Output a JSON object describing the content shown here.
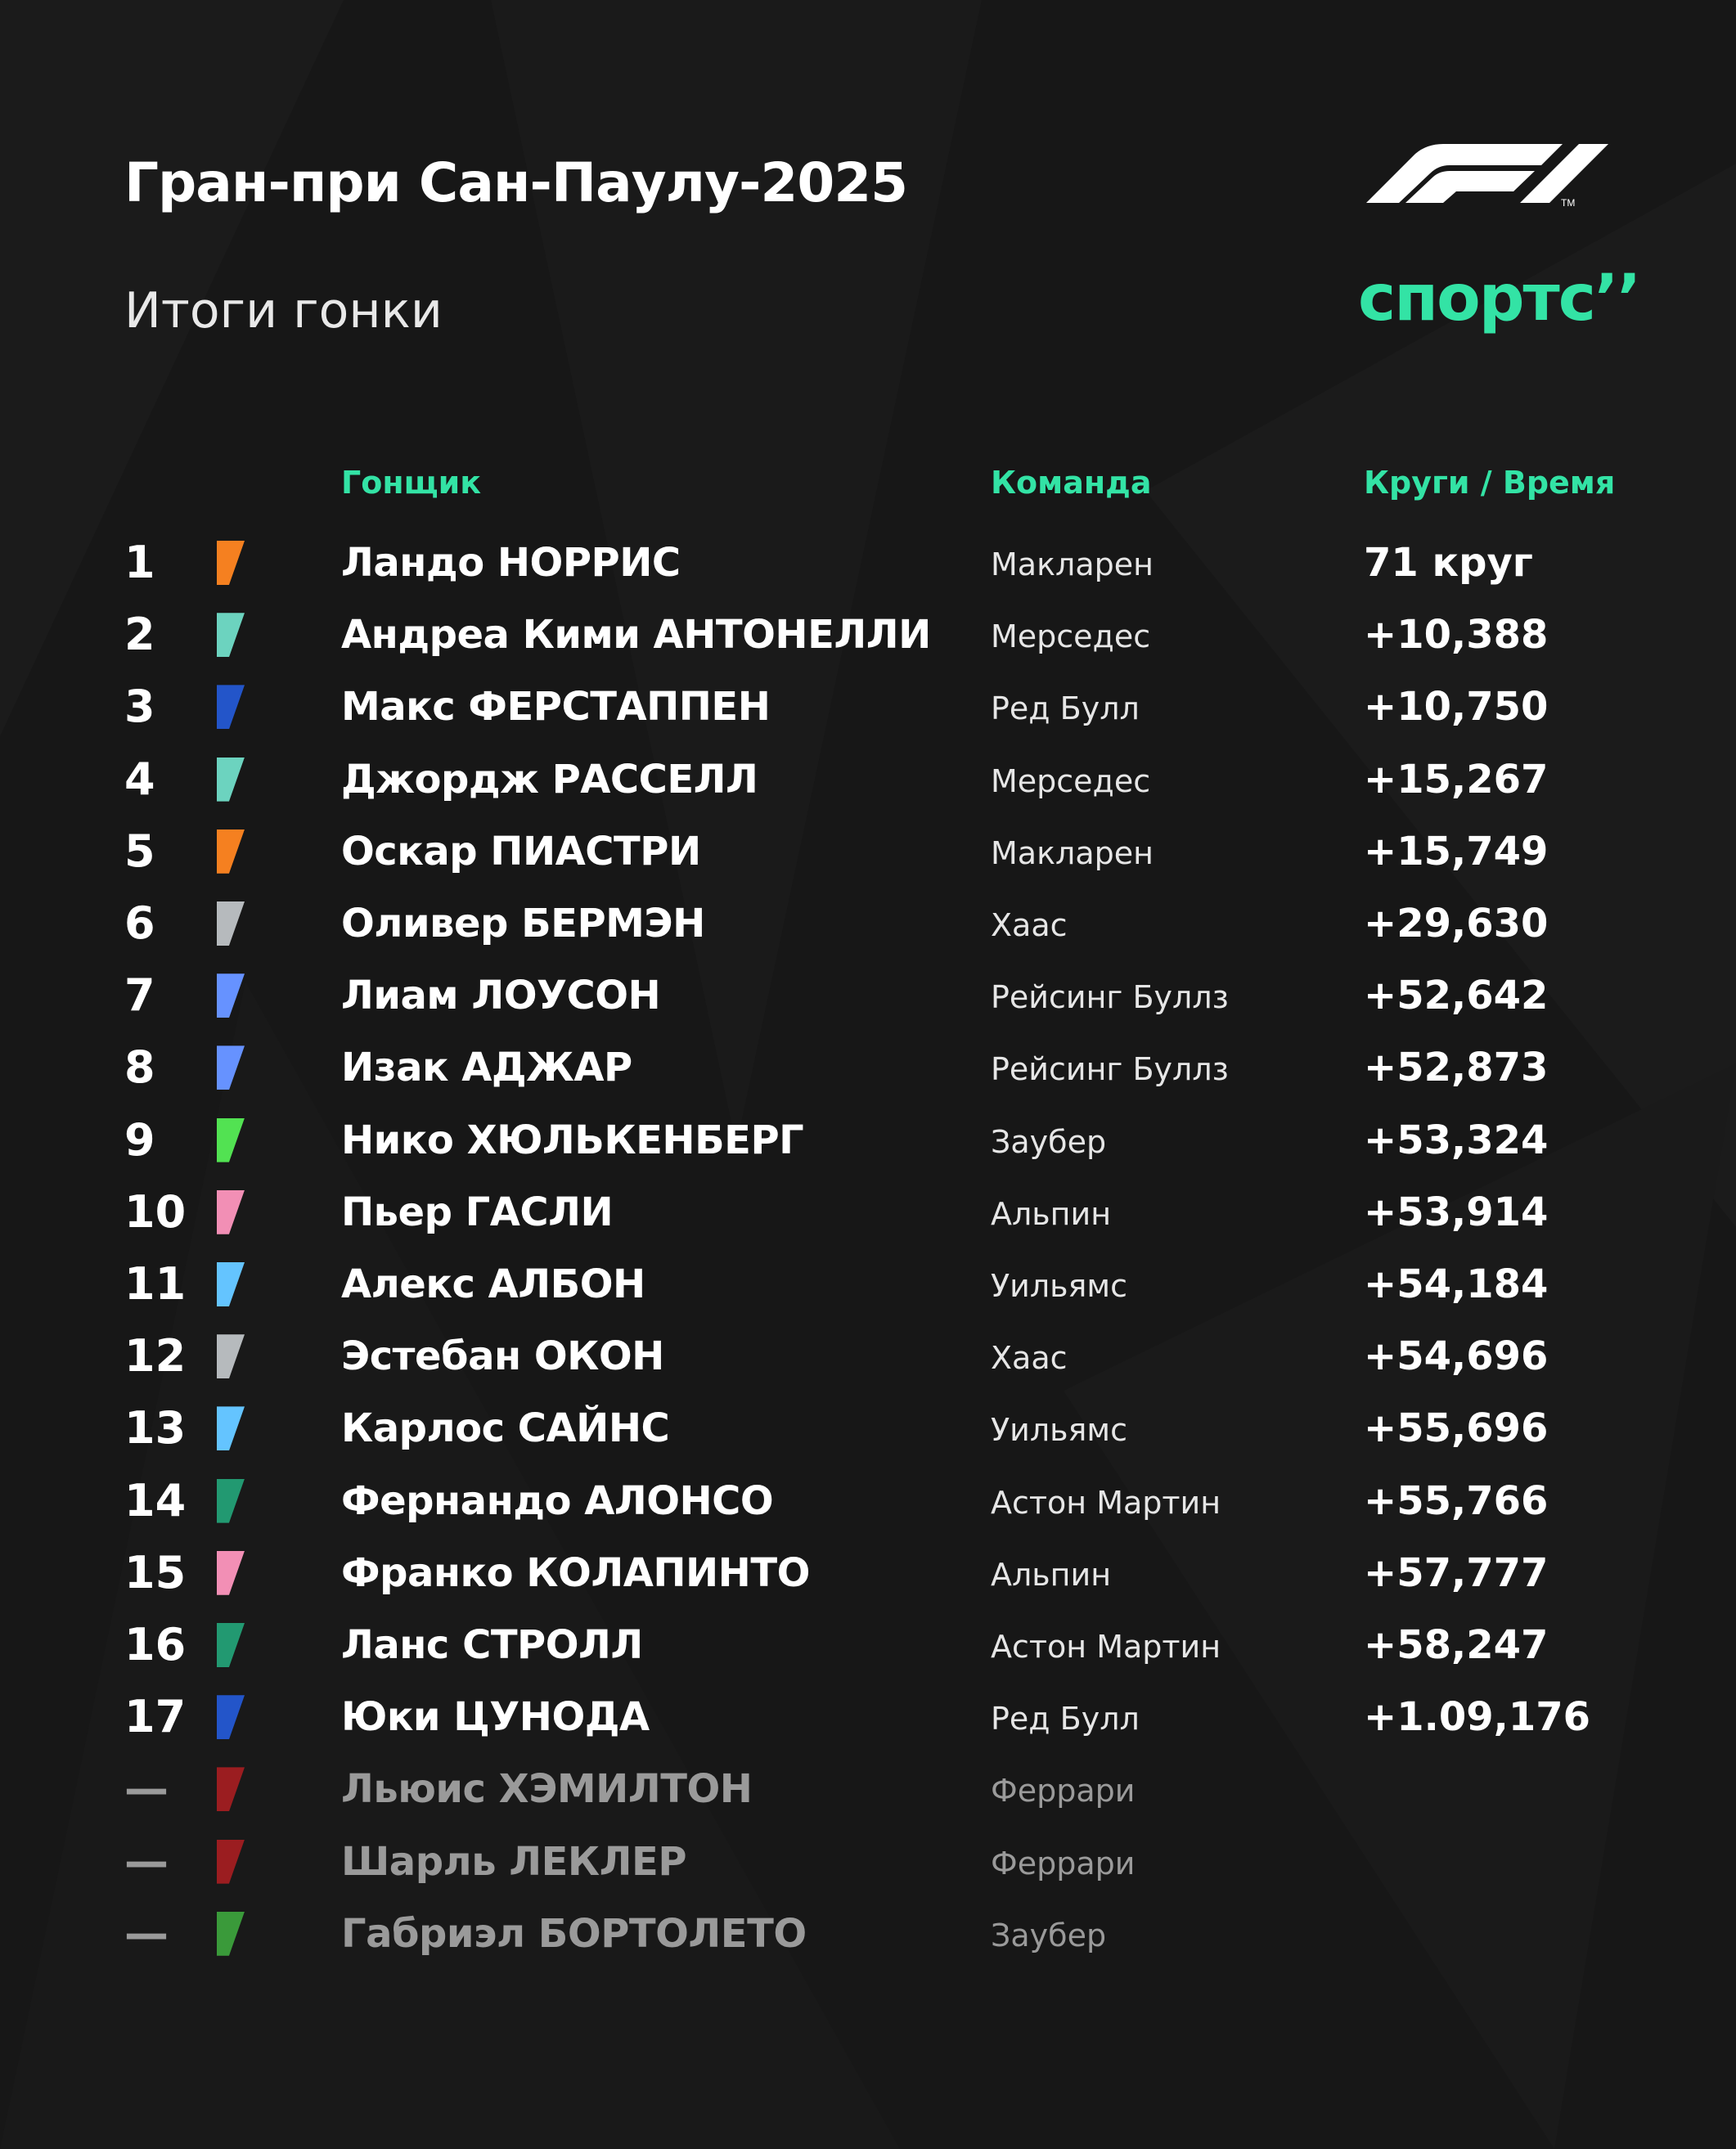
{
  "header": {
    "title": "Гран-при Сан-Паулу-2025",
    "subtitle": "Итоги гонки",
    "f1_logo": "F1 ™",
    "brand_logo": "спортс’’",
    "accent_color": "#33e3a5"
  },
  "columns": {
    "driver": "Гонщик",
    "team": "Команда",
    "laps_time": "Круги / Время"
  },
  "results": [
    {
      "pos": "1",
      "driver": "Ландо НОРРИС",
      "team": "Макларен",
      "time": "71 круг",
      "color": "#f58020"
    },
    {
      "pos": "2",
      "driver": "Андреа Кими АНТОНЕЛЛИ",
      "team": "Мерседес",
      "time": "+10,388",
      "color": "#6cd3bf"
    },
    {
      "pos": "3",
      "driver": "Макс ФЕРСТАППЕН",
      "team": "Ред Булл",
      "time": "+10,750",
      "color": "#2355c9"
    },
    {
      "pos": "4",
      "driver": "Джордж РАССЕЛЛ",
      "team": "Мерседес",
      "time": "+15,267",
      "color": "#6cd3bf"
    },
    {
      "pos": "5",
      "driver": "Оскар ПИАСТРИ",
      "team": "Макларен",
      "time": "+15,749",
      "color": "#f58020"
    },
    {
      "pos": "6",
      "driver": "Оливер БЕРМЭН",
      "team": "Хаас",
      "time": "+29,630",
      "color": "#b6babd"
    },
    {
      "pos": "7",
      "driver": "Лиам ЛОУСОН",
      "team": "Рейсинг Буллз",
      "time": "+52,642",
      "color": "#6692ff"
    },
    {
      "pos": "8",
      "driver": "Изак АДЖАР",
      "team": "Рейсинг Буллз",
      "time": "+52,873",
      "color": "#6692ff"
    },
    {
      "pos": "9",
      "driver": "Нико ХЮЛЬКЕНБЕРГ",
      "team": "Заубер",
      "time": "+53,324",
      "color": "#52e252"
    },
    {
      "pos": "10",
      "driver": "Пьер ГАСЛИ",
      "team": "Альпин",
      "time": "+53,914",
      "color": "#f28fb5"
    },
    {
      "pos": "11",
      "driver": "Алекс АЛБОН",
      "team": "Уильямс",
      "time": "+54,184",
      "color": "#64c4ff"
    },
    {
      "pos": "12",
      "driver": "Эстебан ОКОН",
      "team": "Хаас",
      "time": "+54,696",
      "color": "#b6babd"
    },
    {
      "pos": "13",
      "driver": "Карлос САЙНС",
      "team": "Уильямс",
      "time": "+55,696",
      "color": "#64c4ff"
    },
    {
      "pos": "14",
      "driver": "Фернандо АЛОНСО",
      "team": "Астон Мартин",
      "time": "+55,766",
      "color": "#229971"
    },
    {
      "pos": "15",
      "driver": "Франко КОЛАПИНТО",
      "team": "Альпин",
      "time": "+57,777",
      "color": "#f28fb5"
    },
    {
      "pos": "16",
      "driver": "Ланс СТРОЛЛ",
      "team": "Астон Мартин",
      "time": "+58,247",
      "color": "#229971"
    },
    {
      "pos": "17",
      "driver": "Юки ЦУНОДА",
      "team": "Ред Булл",
      "time": "+1.09,176",
      "color": "#2355c9"
    },
    {
      "pos": "—",
      "driver": "Льюис ХЭМИЛТОН",
      "team": "Феррари",
      "time": "",
      "color": "#9b1d20",
      "dnf": true
    },
    {
      "pos": "—",
      "driver": "Шарль ЛЕКЛЕР",
      "team": "Феррари",
      "time": "",
      "color": "#9b1d20",
      "dnf": true
    },
    {
      "pos": "—",
      "driver": "Габриэл БОРТОЛЕТО",
      "team": "Заубер",
      "time": "",
      "color": "#3a9a3a",
      "dnf": true
    }
  ]
}
